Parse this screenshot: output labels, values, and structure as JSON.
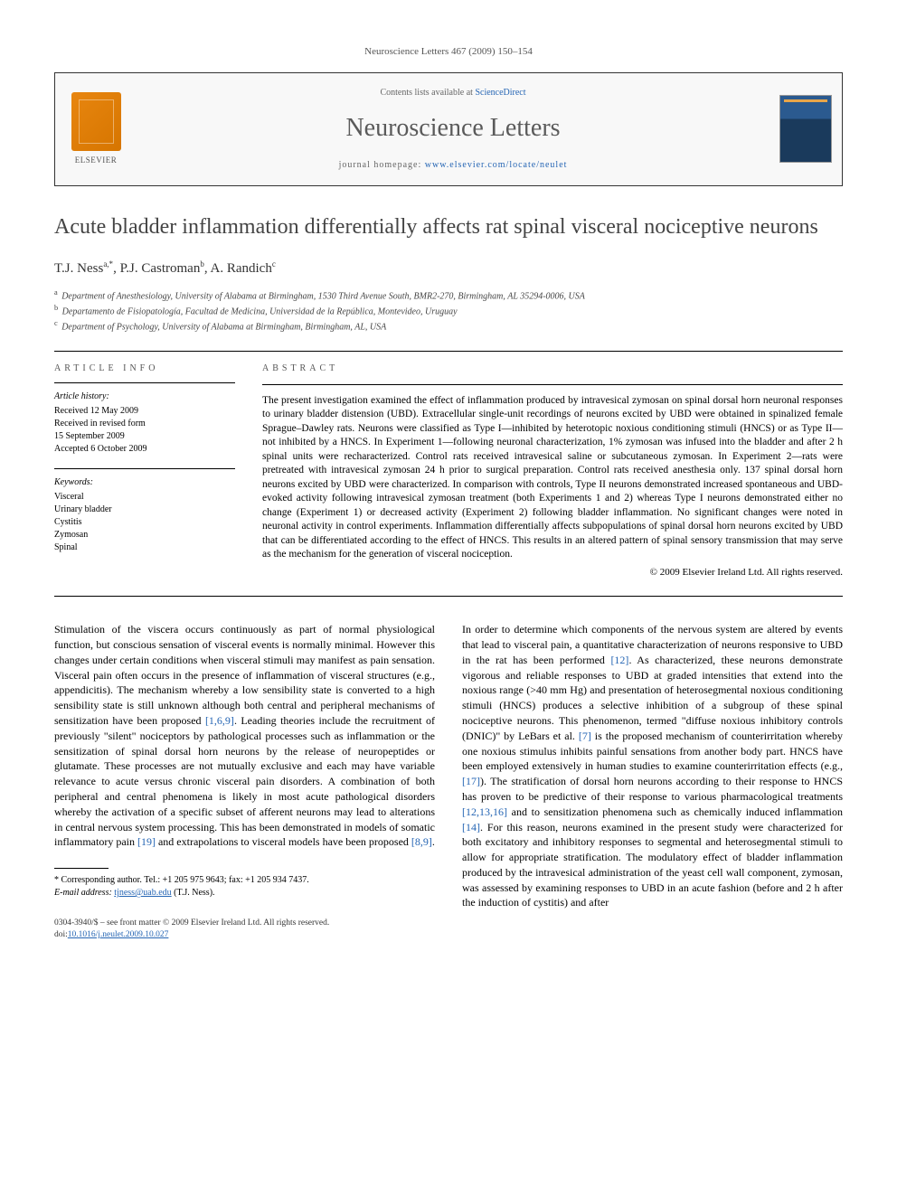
{
  "header": {
    "citation": "Neuroscience Letters 467 (2009) 150–154"
  },
  "journal_box": {
    "contents_prefix": "Contents lists available at ",
    "contents_link": "ScienceDirect",
    "journal_name": "Neuroscience Letters",
    "homepage_prefix": "journal homepage: ",
    "homepage_url": "www.elsevier.com/locate/neulet",
    "publisher": "ELSEVIER"
  },
  "article": {
    "title": "Acute bladder inflammation differentially affects rat spinal visceral nociceptive neurons",
    "authors_html": "T.J. Ness",
    "authors": [
      {
        "name": "T.J. Ness",
        "marks": "a,*"
      },
      {
        "name": "P.J. Castroman",
        "marks": "b"
      },
      {
        "name": "A. Randich",
        "marks": "c"
      }
    ],
    "affiliations": [
      {
        "mark": "a",
        "text": "Department of Anesthesiology, University of Alabama at Birmingham, 1530 Third Avenue South, BMR2-270, Birmingham, AL 35294-0006, USA"
      },
      {
        "mark": "b",
        "text": "Departamento de Fisiopatología, Facultad de Medicina, Universidad de la República, Montevideo, Uruguay"
      },
      {
        "mark": "c",
        "text": "Department of Psychology, University of Alabama at Birmingham, Birmingham, AL, USA"
      }
    ]
  },
  "info": {
    "heading": "ARTICLE INFO",
    "history_label": "Article history:",
    "history": [
      "Received 12 May 2009",
      "Received in revised form",
      "15 September 2009",
      "Accepted 6 October 2009"
    ],
    "keywords_label": "Keywords:",
    "keywords": [
      "Visceral",
      "Urinary bladder",
      "Cystitis",
      "Zymosan",
      "Spinal"
    ]
  },
  "abstract": {
    "heading": "ABSTRACT",
    "text": "The present investigation examined the effect of inflammation produced by intravesical zymosan on spinal dorsal horn neuronal responses to urinary bladder distension (UBD). Extracellular single-unit recordings of neurons excited by UBD were obtained in spinalized female Sprague–Dawley rats. Neurons were classified as Type I—inhibited by heterotopic noxious conditioning stimuli (HNCS) or as Type II—not inhibited by a HNCS. In Experiment 1—following neuronal characterization, 1% zymosan was infused into the bladder and after 2 h spinal units were recharacterized. Control rats received intravesical saline or subcutaneous zymosan. In Experiment 2—rats were pretreated with intravesical zymosan 24 h prior to surgical preparation. Control rats received anesthesia only. 137 spinal dorsal horn neurons excited by UBD were characterized. In comparison with controls, Type II neurons demonstrated increased spontaneous and UBD-evoked activity following intravesical zymosan treatment (both Experiments 1 and 2) whereas Type I neurons demonstrated either no change (Experiment 1) or decreased activity (Experiment 2) following bladder inflammation. No significant changes were noted in neuronal activity in control experiments. Inflammation differentially affects subpopulations of spinal dorsal horn neurons excited by UBD that can be differentiated according to the effect of HNCS. This results in an altered pattern of spinal sensory transmission that may serve as the mechanism for the generation of visceral nociception.",
    "copyright": "© 2009 Elsevier Ireland Ltd. All rights reserved."
  },
  "body": {
    "left": "Stimulation of the viscera occurs continuously as part of normal physiological function, but conscious sensation of visceral events is normally minimal. However this changes under certain conditions when visceral stimuli may manifest as pain sensation. Visceral pain often occurs in the presence of inflammation of visceral structures (e.g., appendicitis). The mechanism whereby a low sensibility state is converted to a high sensibility state is still unknown although both central and peripheral mechanisms of sensitization have been proposed [1,6,9]. Leading theories include the recruitment of previously \"silent\" nociceptors by pathological processes such as inflammation or the sensitization of spinal dorsal horn neurons by the release of neuropeptides or glutamate. These processes are not mutually exclusive and each may have variable relevance to acute versus chronic visceral pain disorders. A combination of both peripheral and central phenomena is likely in most acute pathological disorders whereby the activation of a specific subset of afferent neurons may lead to alterations in central nervous system processing. This has been demonstrated in models of somatic inflammatory pain [19] and extrapolations to visceral models have been proposed [8,9].",
    "right_p1": "In order to determine which components of the nervous system are altered by events that lead to visceral pain, a quantitative characterization of neurons responsive to UBD in the rat has been performed [12]. As characterized, these neurons demonstrate vigorous and reliable responses to UBD at graded intensities that extend into the noxious range (>40 mm Hg) and presentation of heterosegmental noxious conditioning stimuli (HNCS) produces a selective inhibition of a subgroup of these spinal nociceptive neurons. This phenomenon, termed \"diffuse noxious inhibitory controls (DNIC)\" by LeBars et al. [7] is the proposed mechanism of counterirritation whereby one noxious stimulus inhibits painful sensations from another body part. HNCS have been employed extensively in human studies to examine counterirritation effects (e.g., [17]). The stratification of dorsal horn neurons according to their response to HNCS has proven to be predictive of their response to various pharmacological treatments [12,13,16] and to sensitization phenomena such as chemically induced inflammation [14]. For this reason, neurons examined in the present study were characterized for both excitatory and inhibitory responses to segmental and heterosegmental stimuli to allow for appropriate stratification. The modulatory effect of bladder inflammation produced by the intravesical administration of the yeast cell wall component, zymosan, was assessed by examining responses to UBD in an acute fashion (before and 2 h after the induction of cystitis) and after"
  },
  "footnote": {
    "corr_label": "* Corresponding author. Tel.: +1 205 975 9643; fax: +1 205 934 7437.",
    "email_label": "E-mail address:",
    "email": "tjness@uab.edu",
    "email_who": "(T.J. Ness)."
  },
  "footer": {
    "line1": "0304-3940/$ – see front matter © 2009 Elsevier Ireland Ltd. All rights reserved.",
    "doi_prefix": "doi:",
    "doi": "10.1016/j.neulet.2009.10.027"
  },
  "colors": {
    "link": "#2565b4",
    "orange": "#e8860f",
    "navy": "#2b5a8f"
  }
}
